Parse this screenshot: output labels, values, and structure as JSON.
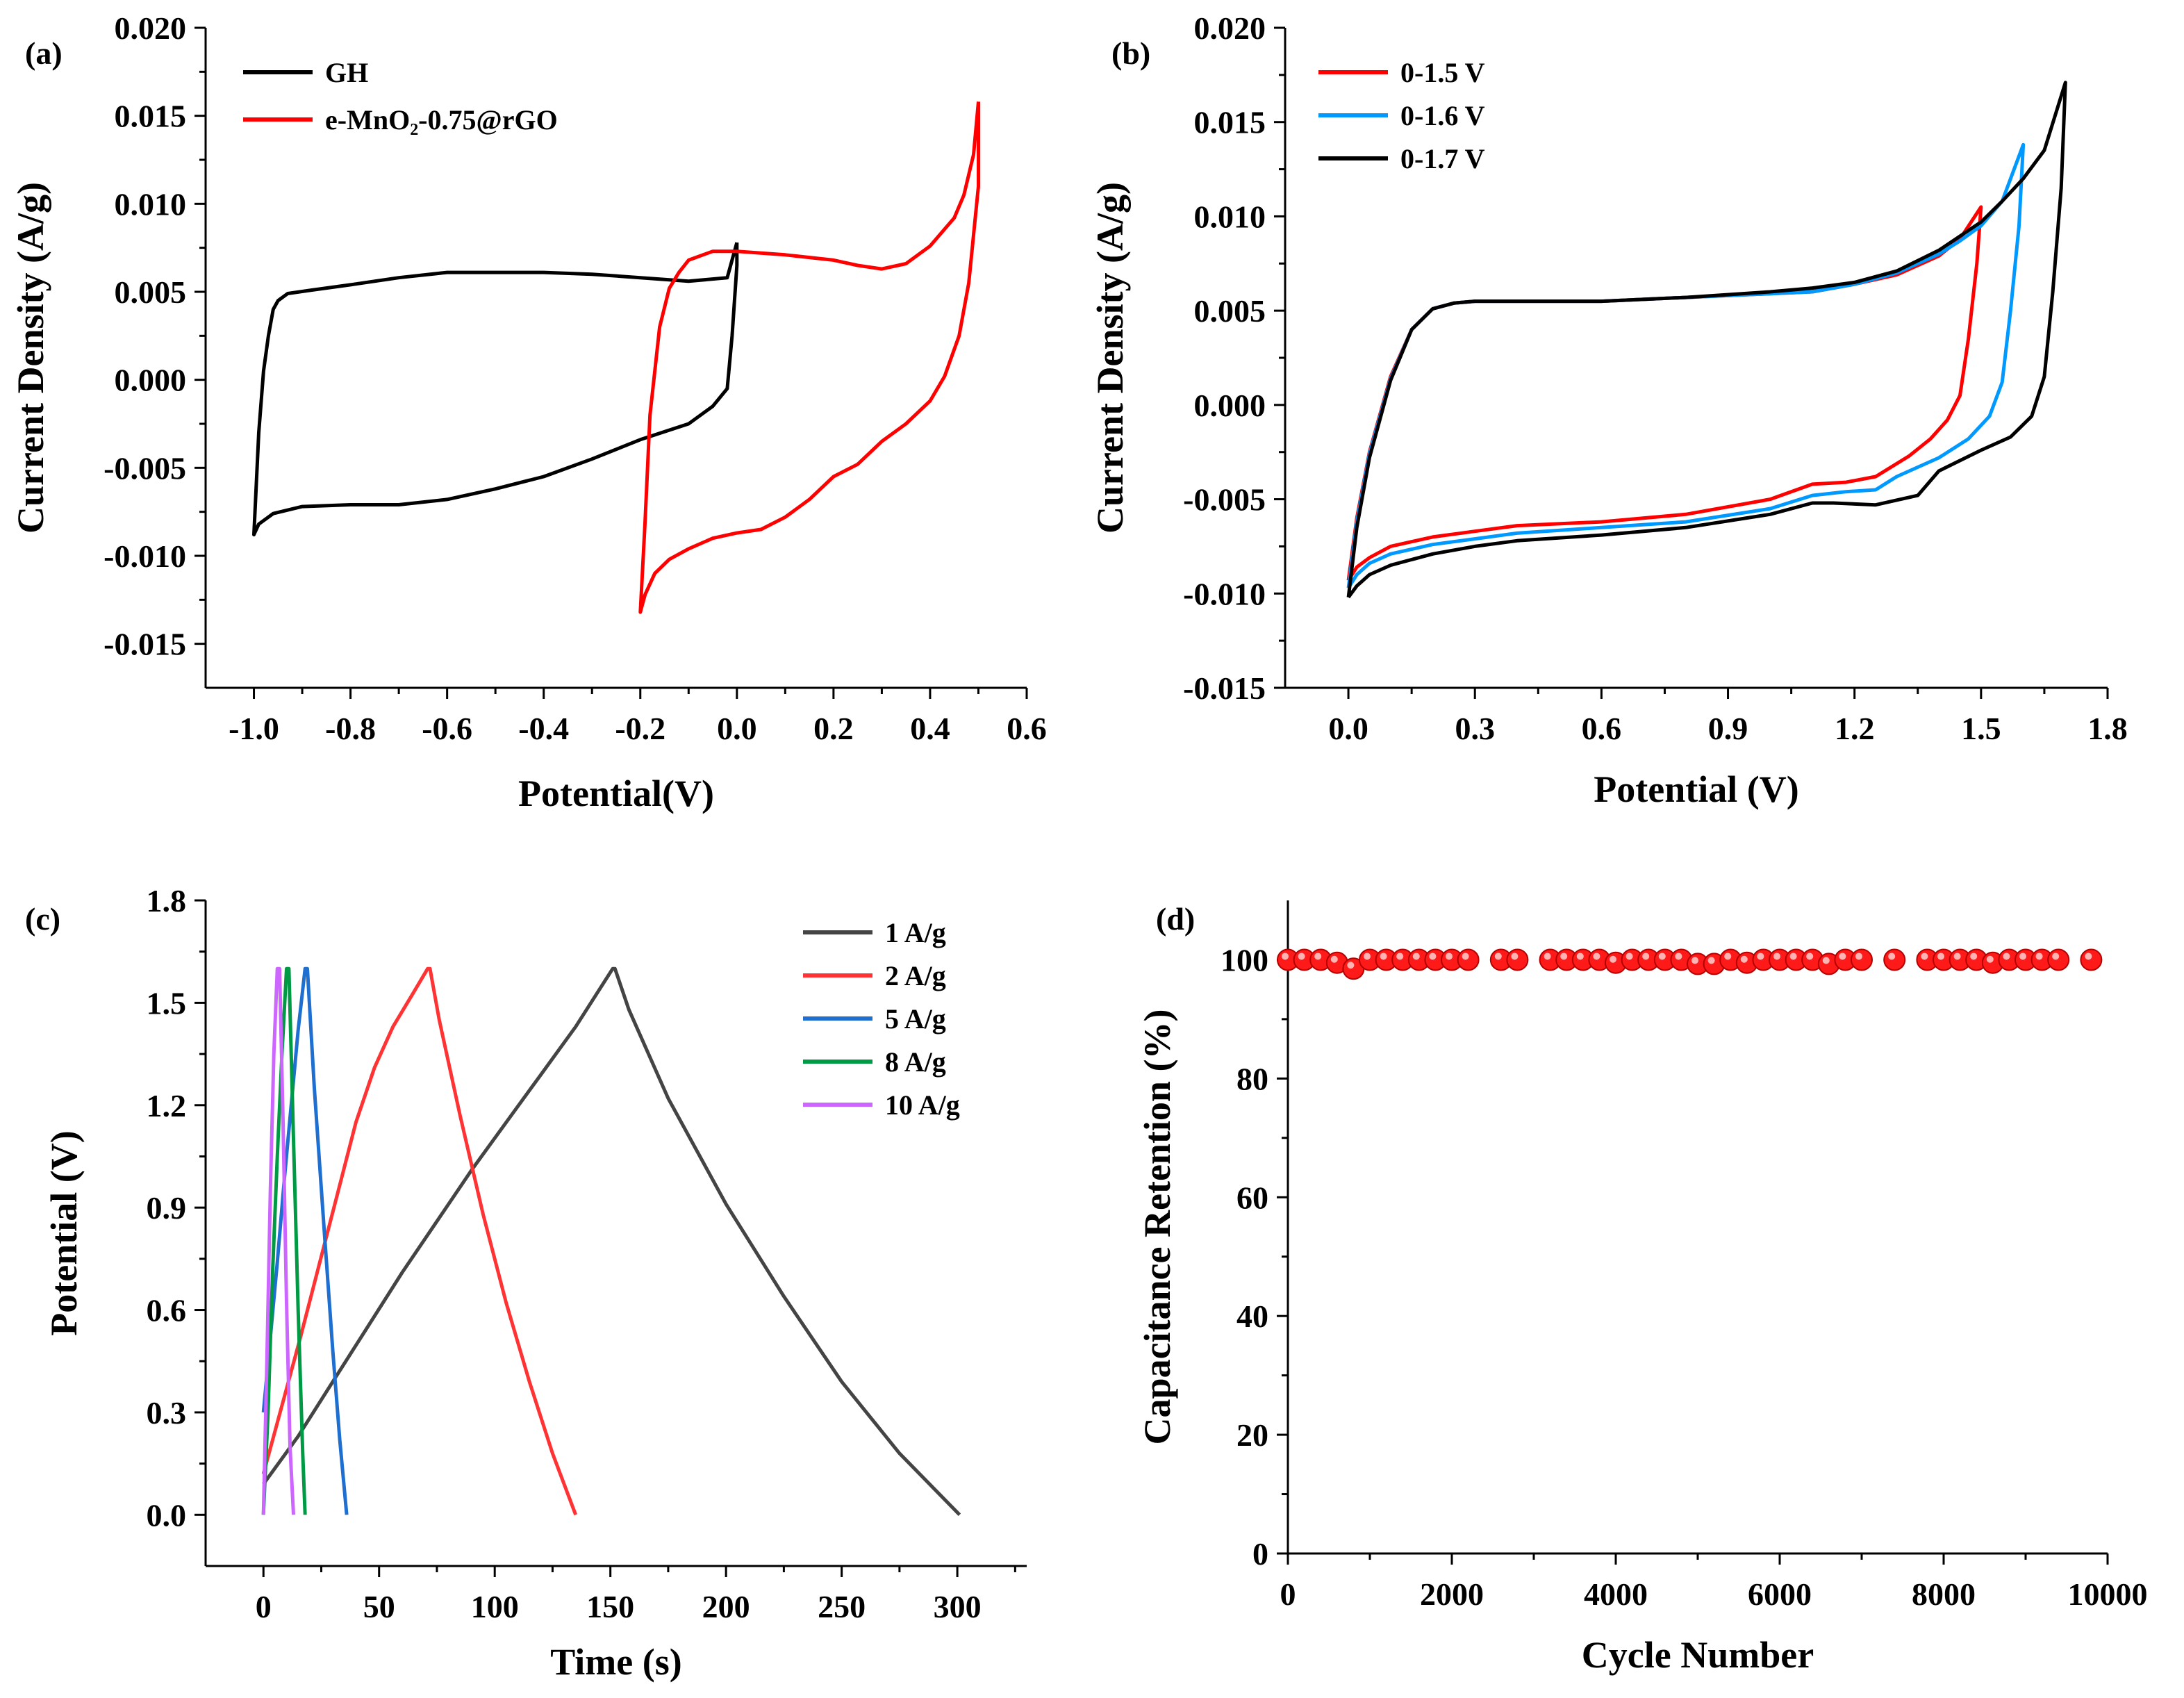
{
  "chart_data": [
    {
      "panel": "(a)",
      "type": "line",
      "xlabel": "Potential(V)",
      "ylabel": "Current Density (A/g)",
      "xlim": [
        -1.1,
        0.6
      ],
      "ylim": [
        -0.0175,
        0.02
      ],
      "xticks": [
        -1.0,
        -0.8,
        -0.6,
        -0.4,
        -0.2,
        0.0,
        0.2,
        0.4,
        0.6
      ],
      "xtick_labels": [
        "-1.0",
        "-0.8",
        "-0.6",
        "-0.4",
        "-0.2",
        "0.0",
        "0.2",
        "0.4",
        "0.6"
      ],
      "yticks": [
        -0.015,
        -0.01,
        -0.005,
        0.0,
        0.005,
        0.01,
        0.015,
        0.02
      ],
      "ytick_labels": [
        "-0.015",
        "-0.010",
        "-0.005",
        "0.000",
        "0.005",
        "0.010",
        "0.015",
        "0.020"
      ],
      "legend_position": "top-left",
      "series": [
        {
          "name": "GH",
          "color": "#000000",
          "x": [
            0.0,
            -0.02,
            -0.1,
            -0.2,
            -0.3,
            -0.4,
            -0.5,
            -0.6,
            -0.7,
            -0.8,
            -0.88,
            -0.93,
            -0.95,
            -0.96,
            -0.97,
            -0.98,
            -0.99,
            -1.0,
            -1.0,
            -0.99,
            -0.96,
            -0.9,
            -0.8,
            -0.7,
            -0.6,
            -0.5,
            -0.4,
            -0.3,
            -0.2,
            -0.1,
            -0.05,
            -0.02,
            -0.01,
            0.0,
            0.0
          ],
          "y": [
            0.0078,
            0.0058,
            0.0056,
            0.0058,
            0.006,
            0.0061,
            0.0061,
            0.0061,
            0.0058,
            0.0054,
            0.0051,
            0.0049,
            0.0045,
            0.004,
            0.0025,
            0.0005,
            -0.003,
            -0.0088,
            -0.0088,
            -0.0082,
            -0.0076,
            -0.0072,
            -0.0071,
            -0.0071,
            -0.0068,
            -0.0062,
            -0.0055,
            -0.0045,
            -0.0034,
            -0.0025,
            -0.0015,
            -0.0005,
            0.0025,
            0.0065,
            0.0078
          ]
        },
        {
          "name": "e-MnO₂-0.75@rGO",
          "color": "#ff0000",
          "x": [
            0.5,
            0.49,
            0.47,
            0.45,
            0.4,
            0.35,
            0.3,
            0.25,
            0.2,
            0.1,
            0.0,
            -0.05,
            -0.1,
            -0.12,
            -0.14,
            -0.16,
            -0.18,
            -0.19,
            -0.2,
            -0.2,
            -0.19,
            -0.17,
            -0.14,
            -0.1,
            -0.05,
            0.0,
            0.05,
            0.1,
            0.15,
            0.2,
            0.25,
            0.3,
            0.35,
            0.4,
            0.43,
            0.46,
            0.48,
            0.5,
            0.5
          ],
          "y": [
            0.0158,
            0.0128,
            0.0105,
            0.0092,
            0.0076,
            0.0066,
            0.0063,
            0.0065,
            0.0068,
            0.0071,
            0.0073,
            0.0073,
            0.0068,
            0.0061,
            0.0052,
            0.003,
            -0.002,
            -0.008,
            -0.0132,
            -0.0132,
            -0.0122,
            -0.011,
            -0.0102,
            -0.0096,
            -0.009,
            -0.0087,
            -0.0085,
            -0.0078,
            -0.0068,
            -0.0055,
            -0.0048,
            -0.0035,
            -0.0025,
            -0.0012,
            0.0002,
            0.0025,
            0.0055,
            0.011,
            0.0158
          ]
        }
      ]
    },
    {
      "panel": "(b)",
      "type": "line",
      "xlabel": "Potential (V)",
      "ylabel": "Current Density (A/g)",
      "xlim": [
        -0.15,
        1.8
      ],
      "ylim": [
        -0.015,
        0.02
      ],
      "xticks": [
        0.0,
        0.3,
        0.6,
        0.9,
        1.2,
        1.5,
        1.8
      ],
      "xtick_labels": [
        "0.0",
        "0.3",
        "0.6",
        "0.9",
        "1.2",
        "1.5",
        "1.8"
      ],
      "yticks": [
        -0.015,
        -0.01,
        -0.005,
        0.0,
        0.005,
        0.01,
        0.015,
        0.02
      ],
      "ytick_labels": [
        "-0.015",
        "-0.010",
        "-0.005",
        "0.000",
        "0.005",
        "0.010",
        "0.015",
        "0.020"
      ],
      "legend_position": "top-left",
      "series": [
        {
          "name": "0-1.5 V",
          "color": "#ff0000",
          "x": [
            0.0,
            0.02,
            0.05,
            0.1,
            0.15,
            0.2,
            0.25,
            0.3,
            0.4,
            0.6,
            0.8,
            1.0,
            1.1,
            1.2,
            1.3,
            1.35,
            1.4,
            1.45,
            1.5,
            1.5,
            1.49,
            1.47,
            1.45,
            1.42,
            1.38,
            1.33,
            1.25,
            1.18,
            1.1,
            1.0,
            0.8,
            0.6,
            0.4,
            0.3,
            0.2,
            0.1,
            0.05,
            0.02,
            0.0,
            0.0
          ],
          "y": [
            -0.0093,
            -0.006,
            -0.0025,
            0.0015,
            0.004,
            0.0051,
            0.0054,
            0.0055,
            0.0055,
            0.0055,
            0.0057,
            0.0059,
            0.006,
            0.0064,
            0.0069,
            0.0074,
            0.0079,
            0.0088,
            0.0105,
            0.0105,
            0.0075,
            0.0035,
            0.0005,
            -0.0008,
            -0.0018,
            -0.0027,
            -0.0038,
            -0.0041,
            -0.0042,
            -0.005,
            -0.0058,
            -0.0062,
            -0.0064,
            -0.0067,
            -0.007,
            -0.0075,
            -0.0081,
            -0.0086,
            -0.0093,
            -0.0093
          ]
        },
        {
          "name": "0-1.6 V",
          "color": "#0099ff",
          "x": [
            0.0,
            0.02,
            0.05,
            0.1,
            0.15,
            0.2,
            0.25,
            0.3,
            0.4,
            0.6,
            0.8,
            1.0,
            1.1,
            1.2,
            1.3,
            1.4,
            1.45,
            1.5,
            1.55,
            1.6,
            1.6,
            1.59,
            1.57,
            1.55,
            1.52,
            1.47,
            1.4,
            1.3,
            1.25,
            1.18,
            1.1,
            1.0,
            0.8,
            0.6,
            0.4,
            0.3,
            0.2,
            0.1,
            0.05,
            0.02,
            0.0,
            0.0
          ],
          "y": [
            -0.0097,
            -0.0062,
            -0.0026,
            0.0014,
            0.004,
            0.0051,
            0.0054,
            0.0055,
            0.0055,
            0.0055,
            0.0057,
            0.0059,
            0.006,
            0.0064,
            0.007,
            0.008,
            0.0087,
            0.0095,
            0.0108,
            0.0138,
            0.0138,
            0.0095,
            0.005,
            0.0012,
            -0.0006,
            -0.0018,
            -0.0028,
            -0.0038,
            -0.0045,
            -0.0046,
            -0.0048,
            -0.0055,
            -0.0062,
            -0.0065,
            -0.0068,
            -0.0071,
            -0.0074,
            -0.0079,
            -0.0084,
            -0.009,
            -0.0097,
            -0.0097
          ]
        },
        {
          "name": "0-1.7 V",
          "color": "#000000",
          "x": [
            0.0,
            0.02,
            0.05,
            0.1,
            0.15,
            0.2,
            0.25,
            0.3,
            0.4,
            0.6,
            0.8,
            1.0,
            1.1,
            1.2,
            1.3,
            1.4,
            1.5,
            1.55,
            1.6,
            1.65,
            1.7,
            1.7,
            1.69,
            1.67,
            1.65,
            1.62,
            1.57,
            1.5,
            1.4,
            1.35,
            1.25,
            1.15,
            1.1,
            1.0,
            0.8,
            0.6,
            0.4,
            0.3,
            0.2,
            0.1,
            0.05,
            0.02,
            0.0,
            0.0
          ],
          "y": [
            -0.0102,
            -0.0065,
            -0.0028,
            0.0013,
            0.004,
            0.0051,
            0.0054,
            0.0055,
            0.0055,
            0.0055,
            0.0057,
            0.006,
            0.0062,
            0.0065,
            0.0071,
            0.0082,
            0.0097,
            0.0108,
            0.012,
            0.0135,
            0.0171,
            0.0171,
            0.0115,
            0.006,
            0.0015,
            -0.0006,
            -0.0017,
            -0.0024,
            -0.0035,
            -0.0048,
            -0.0053,
            -0.0052,
            -0.0052,
            -0.0058,
            -0.0065,
            -0.0069,
            -0.0072,
            -0.0075,
            -0.0079,
            -0.0085,
            -0.009,
            -0.0096,
            -0.0102,
            -0.0102
          ]
        }
      ]
    },
    {
      "panel": "(c)",
      "type": "line",
      "xlabel": "Time (s)",
      "ylabel": "Potential (V)",
      "xlim": [
        -25,
        330
      ],
      "ylim": [
        -0.15,
        1.8
      ],
      "xticks": [
        0,
        50,
        100,
        150,
        200,
        250,
        300
      ],
      "xtick_labels": [
        "0",
        "50",
        "100",
        "150",
        "200",
        "250",
        "300"
      ],
      "yticks": [
        0.0,
        0.3,
        0.6,
        0.9,
        1.2,
        1.5,
        1.8
      ],
      "ytick_labels": [
        "0.0",
        "0.3",
        "0.6",
        "0.9",
        "1.2",
        "1.5",
        "1.8"
      ],
      "legend_position": "top-right",
      "series": [
        {
          "name": "1 A/g",
          "color": "#444444",
          "x": [
            0,
            15,
            30,
            45,
            60,
            75,
            90,
            105,
            120,
            135,
            151,
            152,
            158,
            175,
            200,
            225,
            250,
            275,
            301
          ],
          "y": [
            0.09,
            0.23,
            0.39,
            0.55,
            0.71,
            0.86,
            1.01,
            1.15,
            1.29,
            1.43,
            1.6,
            1.6,
            1.48,
            1.22,
            0.91,
            0.64,
            0.39,
            0.18,
            0.0
          ]
        },
        {
          "name": "2 A/g",
          "color": "#ff3333",
          "x": [
            0,
            8,
            16,
            24,
            32,
            40,
            48,
            56,
            64,
            71,
            72,
            76,
            85,
            95,
            105,
            115,
            125,
            135
          ],
          "y": [
            0.12,
            0.32,
            0.52,
            0.73,
            0.94,
            1.15,
            1.31,
            1.43,
            1.52,
            1.6,
            1.6,
            1.45,
            1.17,
            0.88,
            0.62,
            0.39,
            0.18,
            0.0
          ]
        },
        {
          "name": "5 A/g",
          "color": "#1f6fd1",
          "x": [
            0,
            3,
            6,
            9,
            12,
            15,
            18,
            19,
            22,
            26,
            30,
            33,
            36
          ],
          "y": [
            0.3,
            0.52,
            0.74,
            0.98,
            1.2,
            1.42,
            1.6,
            1.6,
            1.25,
            0.86,
            0.48,
            0.22,
            0.0
          ]
        },
        {
          "name": "8 A/g",
          "color": "#009944",
          "x": [
            0,
            2,
            4,
            6,
            8,
            10,
            11,
            13,
            15,
            17,
            18
          ],
          "y": [
            0.0,
            0.3,
            0.72,
            1.05,
            1.35,
            1.6,
            1.6,
            1.1,
            0.6,
            0.18,
            0.0
          ]
        },
        {
          "name": "10 A/g",
          "color": "#cc66ff",
          "x": [
            0,
            1.5,
            3,
            4.5,
            6,
            7,
            8.5,
            10,
            11.5,
            13
          ],
          "y": [
            0.0,
            0.45,
            0.95,
            1.35,
            1.6,
            1.6,
            1.15,
            0.62,
            0.2,
            0.0
          ]
        }
      ]
    },
    {
      "panel": "(d)",
      "type": "scatter",
      "xlabel": "Cycle Number",
      "ylabel": "Capacitance Retention (%)",
      "xlim": [
        0,
        10000
      ],
      "ylim": [
        0,
        110
      ],
      "xticks": [
        0,
        2000,
        4000,
        6000,
        8000,
        10000
      ],
      "xtick_labels": [
        "0",
        "2000",
        "4000",
        "6000",
        "8000",
        "10000"
      ],
      "yticks": [
        0,
        20,
        40,
        60,
        80,
        100
      ],
      "ytick_labels": [
        "0",
        "20",
        "40",
        "60",
        "80",
        "100"
      ],
      "series": [
        {
          "color": "#ff1a1a",
          "x": [
            0,
            200,
            400,
            600,
            800,
            1000,
            1200,
            1400,
            1600,
            1800,
            2000,
            2200,
            2600,
            2800,
            3200,
            3400,
            3600,
            3800,
            4000,
            4200,
            4400,
            4600,
            4800,
            5000,
            5200,
            5400,
            5600,
            5800,
            6000,
            6200,
            6400,
            6600,
            6800,
            7000,
            7400,
            7800,
            8000,
            8200,
            8400,
            8600,
            8800,
            9000,
            9200,
            9400,
            9800
          ],
          "y": [
            100,
            100,
            100,
            99.5,
            98.5,
            100,
            100,
            100,
            100,
            100,
            100,
            100,
            100,
            100,
            100,
            100,
            100,
            100,
            99.5,
            100,
            100,
            100,
            100,
            99.3,
            99.3,
            100,
            99.5,
            100,
            100,
            100,
            100,
            99.3,
            100,
            100,
            100,
            100,
            100,
            100,
            100,
            99.5,
            100,
            100,
            100,
            100,
            100
          ]
        }
      ]
    }
  ]
}
